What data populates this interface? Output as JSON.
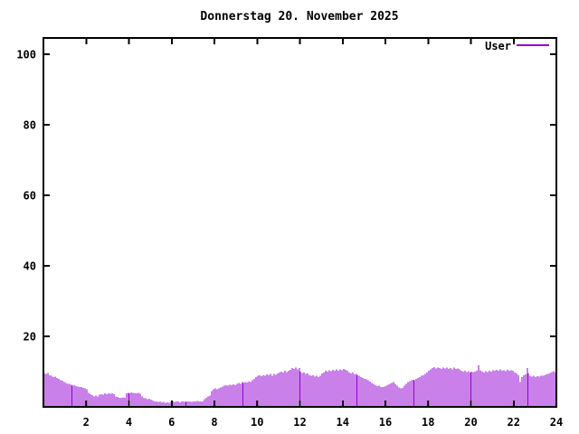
{
  "title": "Donnerstag 20. November 2025",
  "legend": {
    "label": "User",
    "position": "top-right"
  },
  "colors": {
    "background": "#ffffff",
    "axis": "#000000",
    "text": "#000000",
    "user_series": "#9400D3"
  },
  "chart_data": {
    "type": "bar",
    "title": "Donnerstag 20. November 2025",
    "xlabel": "",
    "ylabel": "",
    "x_unit": "hour-of-day",
    "sample_interval_minutes": 5,
    "xlim": [
      0,
      24
    ],
    "ylim": [
      0,
      104.6
    ],
    "x_ticks": [
      2,
      4,
      6,
      8,
      10,
      12,
      14,
      16,
      18,
      20,
      22,
      24
    ],
    "y_ticks": [
      20,
      40,
      60,
      80,
      100
    ],
    "grid": false,
    "legend_position": "top-right",
    "series": [
      {
        "name": "User",
        "color": "#9400D3",
        "style": "impulses",
        "values": [
          9.5,
          9.3,
          9.6,
          9.0,
          8.8,
          8.5,
          8.6,
          8.2,
          8.0,
          7.6,
          7.4,
          7.0,
          6.8,
          6.5,
          6.6,
          6.3,
          6.0,
          6.2,
          5.9,
          5.8,
          5.6,
          5.7,
          5.4,
          5.2,
          5.0,
          4.0,
          3.6,
          3.3,
          3.0,
          3.2,
          3.0,
          3.4,
          3.6,
          3.5,
          3.8,
          3.6,
          3.9,
          3.7,
          3.8,
          3.6,
          3.0,
          2.8,
          2.6,
          2.5,
          2.7,
          2.5,
          3.8,
          4.0,
          3.9,
          4.1,
          4.0,
          3.8,
          3.9,
          4.0,
          3.7,
          3.0,
          2.6,
          2.4,
          2.2,
          2.3,
          2.1,
          1.8,
          1.6,
          1.5,
          1.4,
          1.5,
          1.3,
          1.4,
          1.2,
          1.3,
          1.2,
          1.4,
          1.5,
          1.4,
          1.6,
          1.5,
          1.3,
          1.5,
          1.6,
          1.4,
          1.5,
          1.6,
          1.5,
          1.4,
          1.6,
          1.5,
          1.7,
          1.6,
          1.5,
          1.6,
          2.2,
          2.6,
          3.0,
          3.2,
          4.5,
          5.0,
          5.2,
          5.0,
          5.3,
          5.5,
          5.8,
          6.0,
          6.2,
          6.0,
          6.3,
          6.1,
          6.4,
          6.2,
          6.5,
          6.8,
          6.6,
          7.0,
          6.8,
          7.1,
          6.9,
          7.2,
          7.0,
          7.5,
          8.0,
          8.5,
          8.8,
          9.0,
          8.7,
          9.0,
          8.8,
          9.2,
          9.0,
          9.3,
          8.9,
          9.4,
          9.1,
          9.5,
          9.8,
          10.0,
          9.7,
          10.2,
          9.9,
          10.3,
          10.5,
          11.0,
          10.8,
          11.2,
          10.6,
          11.0,
          10.0,
          9.6,
          9.8,
          9.3,
          9.5,
          9.0,
          8.8,
          9.0,
          8.6,
          8.9,
          8.5,
          8.8,
          9.5,
          9.8,
          10.2,
          10.0,
          10.4,
          10.1,
          10.5,
          10.2,
          10.6,
          10.3,
          10.7,
          10.4,
          10.8,
          10.5,
          10.2,
          9.8,
          9.5,
          9.7,
          9.2,
          9.4,
          9.0,
          8.8,
          8.5,
          8.2,
          8.0,
          7.8,
          7.5,
          7.2,
          6.8,
          6.5,
          6.2,
          5.9,
          6.0,
          5.7,
          5.6,
          5.8,
          6.0,
          6.3,
          6.6,
          6.8,
          7.0,
          6.5,
          6.0,
          5.5,
          5.2,
          5.4,
          6.0,
          6.5,
          7.0,
          7.3,
          7.5,
          7.7,
          7.6,
          7.9,
          8.2,
          8.5,
          8.8,
          9.0,
          9.4,
          9.8,
          10.2,
          10.6,
          11.0,
          11.3,
          10.9,
          11.2,
          11.0,
          10.8,
          11.1,
          10.9,
          11.2,
          10.8,
          11.0,
          10.7,
          11.1,
          10.8,
          10.9,
          10.6,
          10.2,
          10.0,
          10.3,
          9.9,
          10.1,
          9.8,
          10.0,
          9.9,
          10.0,
          10.2,
          11.8,
          10.4,
          10.0,
          9.8,
          10.1,
          9.9,
          10.2,
          10.0,
          10.4,
          10.2,
          10.5,
          10.3,
          10.6,
          10.2,
          10.4,
          10.1,
          10.5,
          10.3,
          10.4,
          10.2,
          9.8,
          9.5,
          9.0,
          7.0,
          8.5,
          9.0,
          9.2,
          11.0,
          9.5,
          8.8,
          8.6,
          8.8,
          8.5,
          8.7,
          8.6,
          8.8,
          8.9,
          9.0,
          9.2,
          9.4,
          9.6,
          9.9,
          10.1,
          9.8
        ]
      }
    ]
  }
}
